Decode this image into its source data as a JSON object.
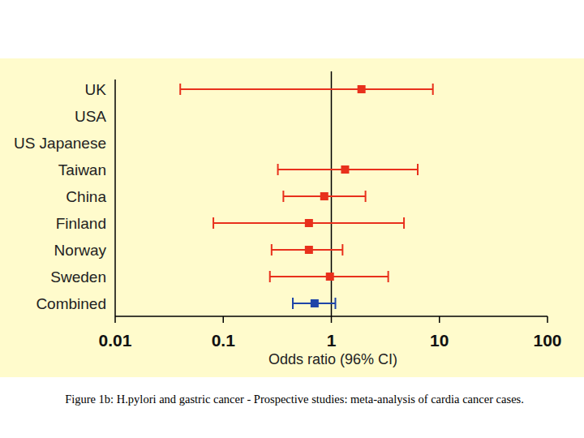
{
  "chart_data": {
    "type": "forest",
    "title": "Figure 1b: H.pylori and gastric cancer - Prospective studies: meta-analysis of cardia cancer cases.",
    "x_label": "Odds ratio (96% CI)",
    "categories": [
      "UK",
      "USA",
      "US Japanese",
      "Taiwan",
      "China",
      "Finland",
      "Norway",
      "Sweden",
      "Combined"
    ],
    "values": [
      1.9,
      null,
      null,
      1.34,
      0.86,
      0.62,
      0.62,
      0.97,
      0.7
    ],
    "ci_lower": [
      0.04,
      null,
      null,
      0.32,
      0.36,
      0.081,
      0.28,
      0.27,
      0.44
    ],
    "ci_upper": [
      8.7,
      null,
      null,
      6.3,
      2.07,
      4.7,
      1.27,
      3.36,
      1.09
    ],
    "colors": [
      "#e8301c",
      "#e8301c",
      "#e8301c",
      "#e8301c",
      "#e8301c",
      "#e8301c",
      "#e8301c",
      "#e8301c",
      "#1f45a8"
    ],
    "log": "x",
    "xlim": [
      0.01,
      100
    ],
    "xticks": [
      0.01,
      0.1,
      1,
      10,
      100
    ],
    "reference_line": 1
  }
}
